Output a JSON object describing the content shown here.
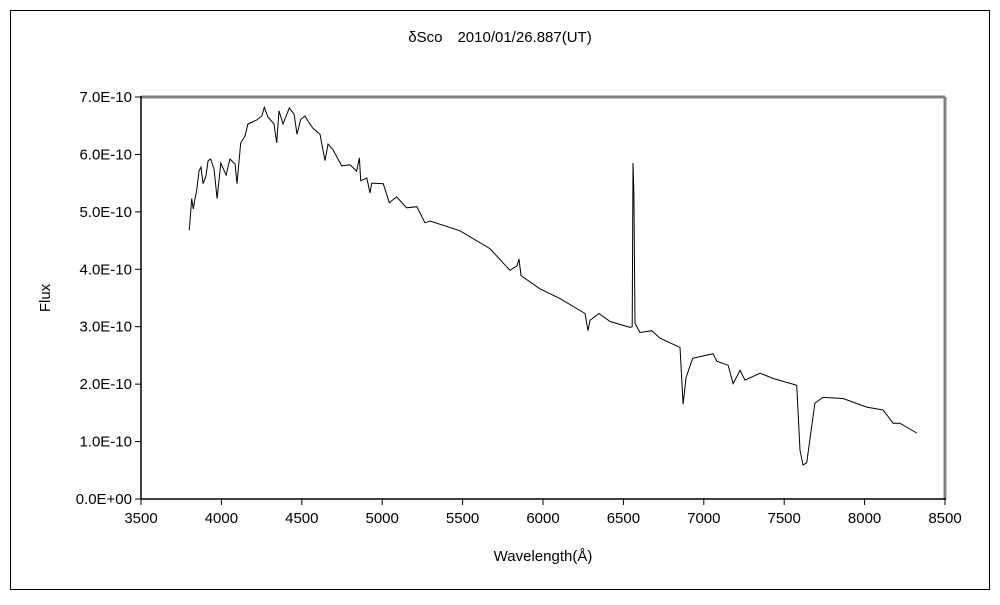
{
  "chart_data": {
    "type": "line",
    "title": "δSco　2010/01/26.887(UT)",
    "xlabel": "Wavelength(Å)",
    "ylabel": "Flux",
    "xlim": [
      3500,
      8500
    ],
    "ylim": [
      0,
      7e-10
    ],
    "xticks": [
      3500,
      4000,
      4500,
      5000,
      5500,
      6000,
      6500,
      7000,
      7500,
      8000,
      8500
    ],
    "yticks": [
      0,
      1e-10,
      2e-10,
      3e-10,
      4e-10,
      5e-10,
      6e-10,
      7e-10
    ],
    "xtick_labels": [
      "3500",
      "4000",
      "4500",
      "5000",
      "5500",
      "6000",
      "6500",
      "7000",
      "7500",
      "8000",
      "8500"
    ],
    "ytick_labels": [
      "0.0E+00",
      "1.0E-10",
      "2.0E-10",
      "3.0E-10",
      "4.0E-10",
      "5.0E-10",
      "6.0E-10",
      "7.0E-10"
    ],
    "grid": false,
    "legend": "none",
    "y_unit_scale": 1e-10,
    "series": [
      {
        "name": "Flux",
        "color": "#000000",
        "x": [
          3800,
          3805,
          3815,
          3825,
          3836,
          3846,
          3861,
          3873,
          3886,
          3904,
          3917,
          3933,
          3954,
          3973,
          3996,
          4029,
          4053,
          4085,
          4097,
          4120,
          4147,
          4165,
          4220,
          4251,
          4267,
          4290,
          4327,
          4344,
          4358,
          4383,
          4422,
          4452,
          4470,
          4493,
          4520,
          4539,
          4568,
          4613,
          4644,
          4663,
          4692,
          4748,
          4800,
          4841,
          4858,
          4866,
          4904,
          4924,
          4935,
          5007,
          5044,
          5090,
          5152,
          5215,
          5266,
          5297,
          5484,
          5670,
          5795,
          5838,
          5851,
          5863,
          5981,
          6106,
          6261,
          6280,
          6292,
          6348,
          6417,
          6541,
          6555,
          6560,
          6565,
          6572,
          6603,
          6676,
          6728,
          6852,
          6871,
          6890,
          6931,
          6977,
          7058,
          7081,
          7151,
          7182,
          7226,
          7256,
          7350,
          7430,
          7578,
          7598,
          7617,
          7640,
          7691,
          7741,
          7866,
          8013,
          8115,
          8177,
          8220,
          8324
        ],
        "y": [
          4.68,
          4.84,
          5.23,
          5.05,
          5.23,
          5.36,
          5.71,
          5.78,
          5.49,
          5.63,
          5.89,
          5.92,
          5.75,
          5.23,
          5.85,
          5.64,
          5.92,
          5.83,
          5.49,
          6.2,
          6.32,
          6.53,
          6.6,
          6.67,
          6.82,
          6.65,
          6.53,
          6.2,
          6.76,
          6.53,
          6.81,
          6.7,
          6.35,
          6.61,
          6.67,
          6.58,
          6.46,
          6.35,
          5.89,
          6.18,
          6.09,
          5.8,
          5.82,
          5.71,
          5.94,
          5.54,
          5.59,
          5.33,
          5.5,
          5.49,
          5.16,
          5.26,
          5.07,
          5.09,
          4.81,
          4.84,
          4.67,
          4.36,
          3.98,
          4.06,
          4.18,
          3.89,
          3.66,
          3.49,
          3.23,
          2.93,
          3.11,
          3.23,
          3.09,
          2.99,
          3.0,
          5.85,
          5.3,
          3.06,
          2.9,
          2.93,
          2.8,
          2.64,
          1.65,
          2.12,
          2.45,
          2.48,
          2.53,
          2.4,
          2.33,
          2.01,
          2.24,
          2.07,
          2.19,
          2.1,
          1.98,
          0.85,
          0.59,
          0.63,
          1.67,
          1.77,
          1.75,
          1.6,
          1.55,
          1.32,
          1.32,
          1.15
        ]
      }
    ]
  }
}
